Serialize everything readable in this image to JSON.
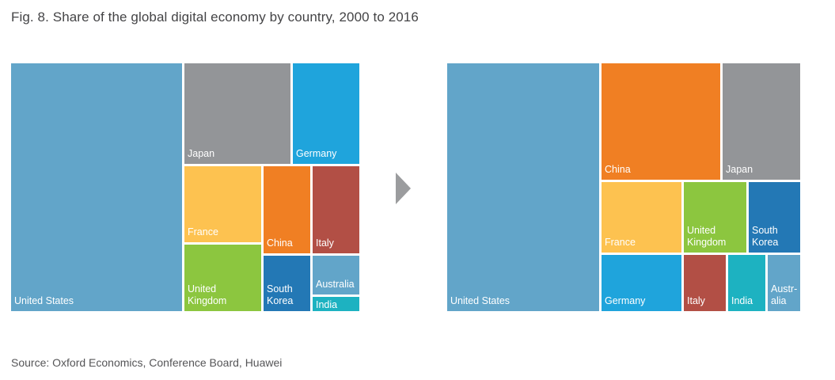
{
  "title": "Fig. 8. Share of the global digital economy by country, 2000 to 2016",
  "source": "Source: Oxford Economics, Conference Board, Huawei",
  "chart_data": [
    {
      "type": "treemap",
      "year": "2000",
      "tiles": [
        {
          "id": "us",
          "label": "United States",
          "color": "#62a5c9"
        },
        {
          "id": "jp",
          "label": "Japan",
          "color": "#939598"
        },
        {
          "id": "de",
          "label": "Germany",
          "color": "#1fa4dc"
        },
        {
          "id": "fr",
          "label": "France",
          "color": "#fdc250"
        },
        {
          "id": "cn",
          "label": "China",
          "color": "#f07f23"
        },
        {
          "id": "it",
          "label": "Italy",
          "color": "#b24f45"
        },
        {
          "id": "uk",
          "label": "United\nKingdom",
          "color": "#8cc63f"
        },
        {
          "id": "kr",
          "label": "South\nKorea",
          "color": "#2378b5"
        },
        {
          "id": "au",
          "label": "Australia",
          "color": "#62a5c9"
        },
        {
          "id": "in",
          "label": "India",
          "color": "#1db2c1"
        }
      ]
    },
    {
      "type": "treemap",
      "year": "2016",
      "tiles": [
        {
          "id": "us",
          "label": "United States",
          "color": "#62a5c9"
        },
        {
          "id": "cn",
          "label": "China",
          "color": "#f07f23"
        },
        {
          "id": "jp",
          "label": "Japan",
          "color": "#939598"
        },
        {
          "id": "fr",
          "label": "France",
          "color": "#fdc250"
        },
        {
          "id": "uk",
          "label": "United\nKingdom",
          "color": "#8cc63f"
        },
        {
          "id": "kr",
          "label": "South\nKorea",
          "color": "#2378b5"
        },
        {
          "id": "de",
          "label": "Germany",
          "color": "#1fa4dc"
        },
        {
          "id": "it",
          "label": "Italy",
          "color": "#b24f45"
        },
        {
          "id": "in",
          "label": "India",
          "color": "#1db2c1"
        },
        {
          "id": "au",
          "label": "Austr-\nalia",
          "color": "#62a5c9"
        }
      ]
    }
  ]
}
